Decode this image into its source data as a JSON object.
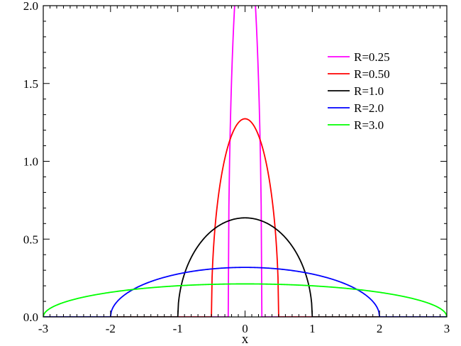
{
  "chart_data": {
    "type": "line",
    "title": "",
    "xlabel": "x",
    "ylabel": "",
    "xlim": [
      -3,
      3
    ],
    "ylim": [
      0,
      2
    ],
    "grid": false,
    "legend_position": "top-right",
    "x_ticks": [
      "-3",
      "-2",
      "-1",
      "0",
      "1",
      "2",
      "3"
    ],
    "y_ticks": [
      "0.0",
      "0.5",
      "1.0",
      "1.5",
      "2.0"
    ],
    "function": "semicircle density f(x) = 2*sqrt(R^2 - x^2)/(pi*R^2) for |x| <= R, else 0",
    "series": [
      {
        "name": "R=0.25",
        "R": 0.25,
        "color": "#ff00ff"
      },
      {
        "name": "R=0.50",
        "R": 0.5,
        "color": "#ff0000"
      },
      {
        "name": "R=1.0",
        "R": 1.0,
        "color": "#000000"
      },
      {
        "name": "R=2.0",
        "R": 2.0,
        "color": "#0000ff"
      },
      {
        "name": "R=3.0",
        "R": 3.0,
        "color": "#00ff00"
      }
    ]
  }
}
